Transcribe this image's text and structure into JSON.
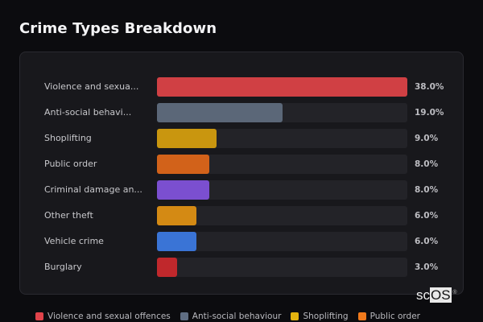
{
  "header": {
    "title": "Crime Types Breakdown"
  },
  "chart_data": {
    "type": "bar",
    "orientation": "horizontal",
    "title": "Crime Types Breakdown",
    "xlabel": "",
    "ylabel": "",
    "unit": "%",
    "scale_max": 38.0,
    "grid": false,
    "legend_position": "bottom",
    "categories": [
      "Violence and sexual offences",
      "Anti-social behaviour",
      "Shoplifting",
      "Public order",
      "Criminal damage and arson",
      "Other theft",
      "Vehicle crime",
      "Burglary"
    ],
    "display_labels": [
      "Violence and sexua...",
      "Anti-social behavi...",
      "Shoplifting",
      "Public order",
      "Criminal damage an...",
      "Other theft",
      "Vehicle crime",
      "Burglary"
    ],
    "values": [
      38.0,
      19.0,
      9.0,
      8.0,
      8.0,
      6.0,
      6.0,
      3.0
    ],
    "value_labels": [
      "38.0%",
      "19.0%",
      "9.0%",
      "8.0%",
      "8.0%",
      "6.0%",
      "6.0%",
      "3.0%"
    ],
    "colors": [
      "#d04044",
      "#5b6778",
      "#c9960f",
      "#d2621a",
      "#7b4fd0",
      "#d48a14",
      "#3a74d6",
      "#c0282c"
    ]
  },
  "legend": [
    {
      "label": "Violence and sexual offences",
      "color": "#e0434a"
    },
    {
      "label": "Anti-social behaviour",
      "color": "#5f6d82"
    },
    {
      "label": "Shoplifting",
      "color": "#e3b30f"
    },
    {
      "label": "Public order",
      "color": "#f07a1c"
    }
  ],
  "brand": {
    "prefix": "sc",
    "highlight": "OS",
    "mark": "®"
  }
}
